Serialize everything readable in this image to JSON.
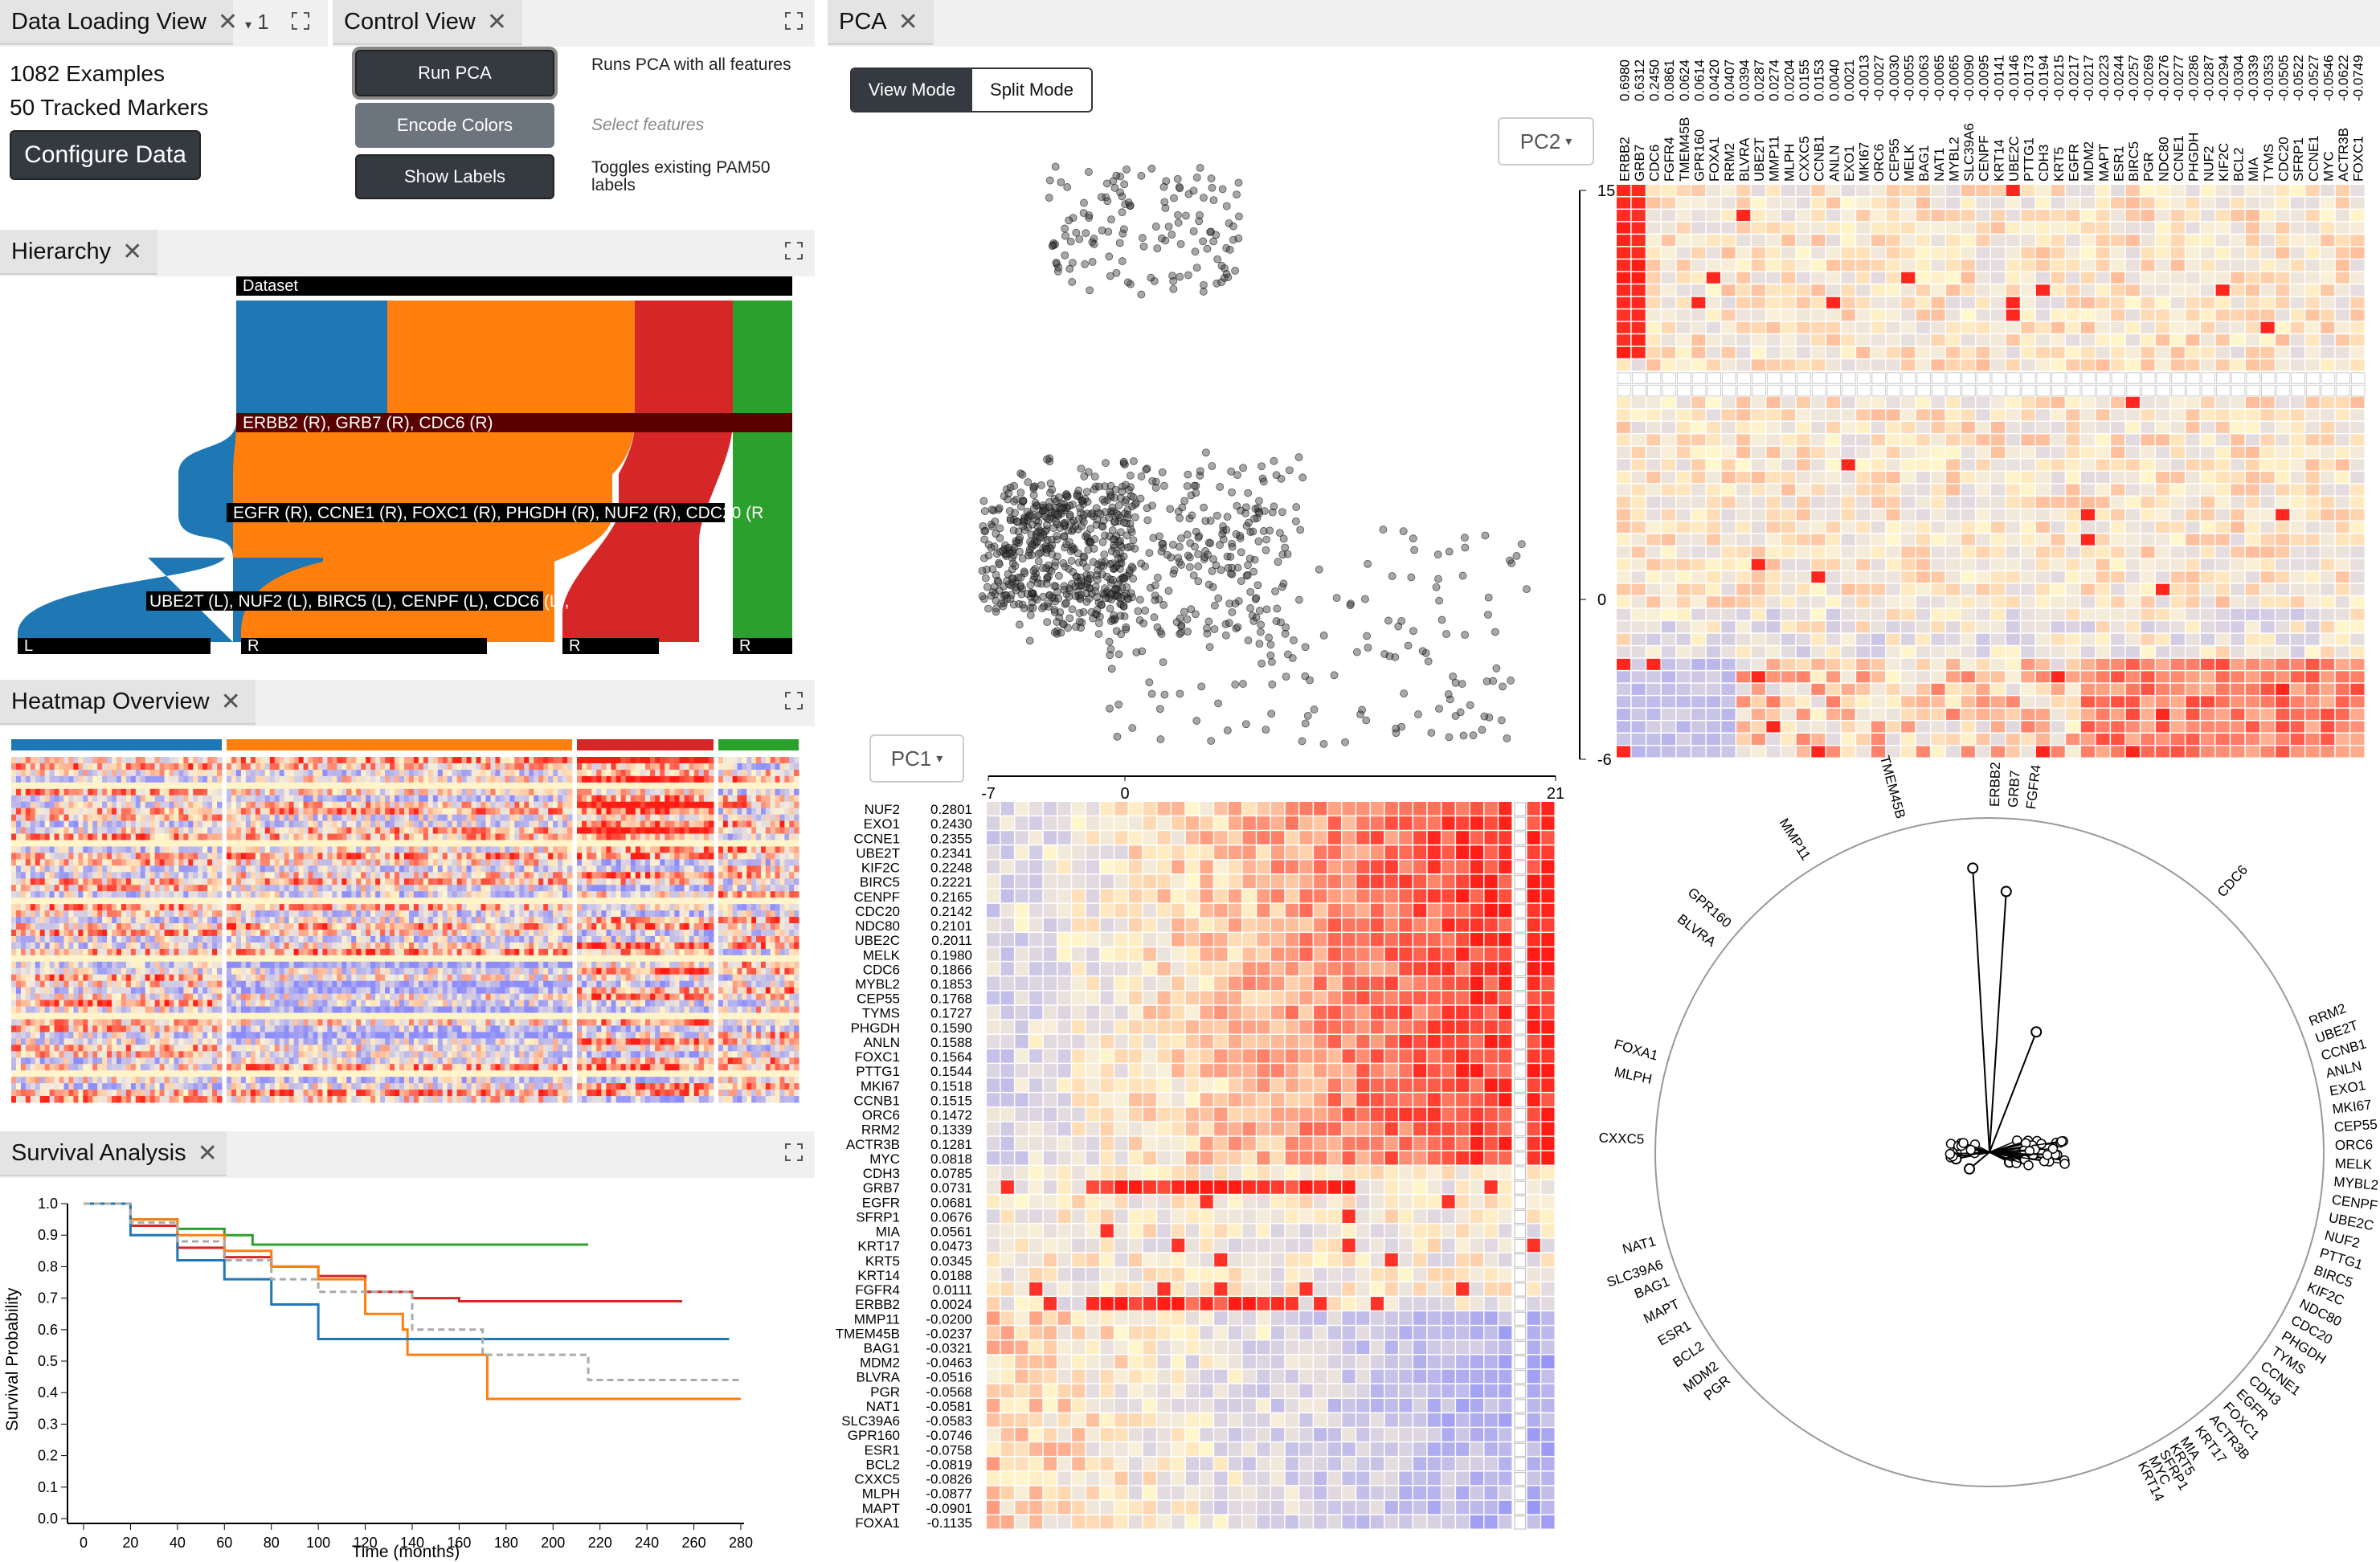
{
  "data_loading": {
    "tab_label": "Data Loading View",
    "dropdown_value": "1",
    "examples_text": "1082 Examples",
    "markers_text": "50 Tracked Markers",
    "configure_button": "Configure Data"
  },
  "control": {
    "tab_label": "Control View",
    "run_pca_button": "Run PCA",
    "run_pca_desc": "Runs PCA with all features",
    "encode_colors_button": "Encode Colors",
    "select_features_placeholder": "Select features",
    "show_labels_button": "Show Labels",
    "show_labels_desc": "Toggles existing PAM50 labels"
  },
  "hierarchy": {
    "tab_label": "Hierarchy",
    "root_label": "Dataset",
    "level1_label": "ERBB2 (R), GRB7 (R), CDC6 (R)",
    "level2_label": "EGFR (R), CCNE1 (R), FOXC1 (R), PHGDH (R), NUF2 (R), CDC20 (R",
    "level3_label": "UBE2T (L), NUF2 (L), BIRC5 (L), CENPF (L), CDC6 (L),",
    "leaf_labels": [
      "L",
      "R",
      "R",
      "R"
    ],
    "colors": {
      "blue": "#1f77b4",
      "orange": "#ff7f0e",
      "red": "#d62728",
      "green": "#2ca02c",
      "dark": "#000000",
      "darkred": "#5a0000"
    }
  },
  "heatmap_overview": {
    "tab_label": "Heatmap Overview",
    "group_colors": [
      "#1f77b4",
      "#ff7f0e",
      "#d62728",
      "#2ca02c"
    ]
  },
  "survival": {
    "tab_label": "Survival Analysis",
    "chart_data": {
      "type": "line",
      "xlabel": "Time (months)",
      "ylabel": "Survival Probability",
      "xlim": [
        0,
        280
      ],
      "ylim": [
        0,
        1.0
      ],
      "xticks": [
        "0",
        "20",
        "40",
        "60",
        "80",
        "100",
        "120",
        "140",
        "160",
        "180",
        "200",
        "220",
        "240",
        "260",
        "280"
      ],
      "yticks": [
        "0.0",
        "0.1",
        "0.2",
        "0.3",
        "0.4",
        "0.5",
        "0.6",
        "0.7",
        "0.8",
        "0.9",
        "1.0"
      ],
      "series": [
        {
          "color": "#2ca02c",
          "x": [
            0,
            20,
            40,
            60,
            70,
            72,
            140,
            215
          ],
          "y": [
            1.0,
            0.95,
            0.92,
            0.9,
            0.9,
            0.87,
            0.87,
            0.87
          ]
        },
        {
          "color": "#d62728",
          "x": [
            0,
            20,
            40,
            60,
            80,
            100,
            120,
            140,
            160,
            190,
            255
          ],
          "y": [
            1.0,
            0.93,
            0.86,
            0.83,
            0.8,
            0.77,
            0.72,
            0.7,
            0.69,
            0.69,
            0.69
          ]
        },
        {
          "color": "#ff7f0e",
          "x": [
            0,
            20,
            40,
            60,
            80,
            100,
            120,
            136,
            138,
            170,
            172,
            280
          ],
          "y": [
            1.0,
            0.95,
            0.9,
            0.85,
            0.8,
            0.76,
            0.65,
            0.6,
            0.52,
            0.52,
            0.38,
            0.38
          ]
        },
        {
          "color": "#1f77b4",
          "x": [
            0,
            20,
            40,
            60,
            80,
            100,
            120,
            140,
            160,
            180,
            275
          ],
          "y": [
            1.0,
            0.9,
            0.82,
            0.76,
            0.68,
            0.57,
            0.57,
            0.57,
            0.57,
            0.57,
            0.57
          ]
        },
        {
          "color": "#aaaaaa",
          "dash": true,
          "x": [
            0,
            20,
            40,
            60,
            80,
            100,
            140,
            168,
            170,
            215,
            280
          ],
          "y": [
            1.0,
            0.94,
            0.88,
            0.82,
            0.76,
            0.72,
            0.6,
            0.6,
            0.52,
            0.44,
            0.44
          ]
        }
      ]
    }
  },
  "pca": {
    "tab_label": "PCA",
    "view_mode_button": "View Mode",
    "split_mode_button": "Split Mode",
    "pc2_dropdown": "PC2",
    "pc1_dropdown": "PC1",
    "scatter_y_ticks": [
      "15",
      "0",
      "-6"
    ],
    "scatter_x_ticks": [
      "-7",
      "0",
      "21"
    ],
    "pc1_loadings": [
      {
        "gene": "NUF2",
        "value": "0.2801"
      },
      {
        "gene": "EXO1",
        "value": "0.2430"
      },
      {
        "gene": "CCNE1",
        "value": "0.2355"
      },
      {
        "gene": "UBE2T",
        "value": "0.2341"
      },
      {
        "gene": "KIF2C",
        "value": "0.2248"
      },
      {
        "gene": "BIRC5",
        "value": "0.2221"
      },
      {
        "gene": "CENPF",
        "value": "0.2165"
      },
      {
        "gene": "CDC20",
        "value": "0.2142"
      },
      {
        "gene": "NDC80",
        "value": "0.2101"
      },
      {
        "gene": "UBE2C",
        "value": "0.2011"
      },
      {
        "gene": "MELK",
        "value": "0.1980"
      },
      {
        "gene": "CDC6",
        "value": "0.1866"
      },
      {
        "gene": "MYBL2",
        "value": "0.1853"
      },
      {
        "gene": "CEP55",
        "value": "0.1768"
      },
      {
        "gene": "TYMS",
        "value": "0.1727"
      },
      {
        "gene": "PHGDH",
        "value": "0.1590"
      },
      {
        "gene": "ANLN",
        "value": "0.1588"
      },
      {
        "gene": "FOXC1",
        "value": "0.1564"
      },
      {
        "gene": "PTTG1",
        "value": "0.1544"
      },
      {
        "gene": "MKI67",
        "value": "0.1518"
      },
      {
        "gene": "CCNB1",
        "value": "0.1515"
      },
      {
        "gene": "ORC6",
        "value": "0.1472"
      },
      {
        "gene": "RRM2",
        "value": "0.1339"
      },
      {
        "gene": "ACTR3B",
        "value": "0.1281"
      },
      {
        "gene": "MYC",
        "value": "0.0818"
      },
      {
        "gene": "CDH3",
        "value": "0.0785"
      },
      {
        "gene": "GRB7",
        "value": "0.0731"
      },
      {
        "gene": "EGFR",
        "value": "0.0681"
      },
      {
        "gene": "SFRP1",
        "value": "0.0676"
      },
      {
        "gene": "MIA",
        "value": "0.0561"
      },
      {
        "gene": "KRT17",
        "value": "0.0473"
      },
      {
        "gene": "KRT5",
        "value": "0.0345"
      },
      {
        "gene": "KRT14",
        "value": "0.0188"
      },
      {
        "gene": "FGFR4",
        "value": "0.0111"
      },
      {
        "gene": "ERBB2",
        "value": "0.0024"
      },
      {
        "gene": "MMP11",
        "value": "-0.0200"
      },
      {
        "gene": "TMEM45B",
        "value": "-0.0237"
      },
      {
        "gene": "BAG1",
        "value": "-0.0321"
      },
      {
        "gene": "MDM2",
        "value": "-0.0463"
      },
      {
        "gene": "BLVRA",
        "value": "-0.0516"
      },
      {
        "gene": "PGR",
        "value": "-0.0568"
      },
      {
        "gene": "NAT1",
        "value": "-0.0581"
      },
      {
        "gene": "SLC39A6",
        "value": "-0.0583"
      },
      {
        "gene": "GPR160",
        "value": "-0.0746"
      },
      {
        "gene": "ESR1",
        "value": "-0.0758"
      },
      {
        "gene": "BCL2",
        "value": "-0.0819"
      },
      {
        "gene": "CXXC5",
        "value": "-0.0826"
      },
      {
        "gene": "MLPH",
        "value": "-0.0877"
      },
      {
        "gene": "MAPT",
        "value": "-0.0901"
      },
      {
        "gene": "FOXA1",
        "value": "-0.1135"
      }
    ],
    "pc2_loadings": [
      {
        "gene": "ERBB2",
        "value": "0.6980"
      },
      {
        "gene": "GRB7",
        "value": "0.6312"
      },
      {
        "gene": "CDC6",
        "value": "0.2450"
      },
      {
        "gene": "FGFR4",
        "value": "0.0861"
      },
      {
        "gene": "TMEM45B",
        "value": "0.0624"
      },
      {
        "gene": "GPR160",
        "value": "0.0614"
      },
      {
        "gene": "FOXA1",
        "value": "0.0420"
      },
      {
        "gene": "RRM2",
        "value": "0.0407"
      },
      {
        "gene": "BLVRA",
        "value": "0.0394"
      },
      {
        "gene": "UBE2T",
        "value": "0.0287"
      },
      {
        "gene": "MMP11",
        "value": "0.0274"
      },
      {
        "gene": "MLPH",
        "value": "0.0204"
      },
      {
        "gene": "CXXC5",
        "value": "0.0155"
      },
      {
        "gene": "CCNB1",
        "value": "0.0153"
      },
      {
        "gene": "ANLN",
        "value": "0.0040"
      },
      {
        "gene": "EXO1",
        "value": "0.0021"
      },
      {
        "gene": "MKI67",
        "value": "-0.0013"
      },
      {
        "gene": "ORC6",
        "value": "-0.0027"
      },
      {
        "gene": "CEP55",
        "value": "-0.0030"
      },
      {
        "gene": "MELK",
        "value": "-0.0055"
      },
      {
        "gene": "BAG1",
        "value": "-0.0063"
      },
      {
        "gene": "NAT1",
        "value": "-0.0065"
      },
      {
        "gene": "MYBL2",
        "value": "-0.0065"
      },
      {
        "gene": "SLC39A6",
        "value": "-0.0090"
      },
      {
        "gene": "CENPF",
        "value": "-0.0095"
      },
      {
        "gene": "KRT14",
        "value": "-0.0141"
      },
      {
        "gene": "UBE2C",
        "value": "-0.0146"
      },
      {
        "gene": "PTTG1",
        "value": "-0.0173"
      },
      {
        "gene": "CDH3",
        "value": "-0.0194"
      },
      {
        "gene": "KRT5",
        "value": "-0.0215"
      },
      {
        "gene": "EGFR",
        "value": "-0.0217"
      },
      {
        "gene": "MDM2",
        "value": "-0.0217"
      },
      {
        "gene": "MAPT",
        "value": "-0.0223"
      },
      {
        "gene": "ESR1",
        "value": "-0.0244"
      },
      {
        "gene": "BIRC5",
        "value": "-0.0257"
      },
      {
        "gene": "PGR",
        "value": "-0.0269"
      },
      {
        "gene": "NDC80",
        "value": "-0.0276"
      },
      {
        "gene": "CCNE1",
        "value": "-0.0277"
      },
      {
        "gene": "PHGDH",
        "value": "-0.0286"
      },
      {
        "gene": "NUF2",
        "value": "-0.0287"
      },
      {
        "gene": "KIF2C",
        "value": "-0.0294"
      },
      {
        "gene": "BCL2",
        "value": "-0.0304"
      },
      {
        "gene": "MIA",
        "value": "-0.0339"
      },
      {
        "gene": "TYMS",
        "value": "-0.0353"
      },
      {
        "gene": "CDC20",
        "value": "-0.0505"
      },
      {
        "gene": "SFRP1",
        "value": "-0.0522"
      },
      {
        "gene": "CCNE1b",
        "value": "-0.0527"
      },
      {
        "gene": "MYC",
        "value": "-0.0546"
      },
      {
        "gene": "ACTR3B",
        "value": "-0.0622"
      },
      {
        "gene": "FOXC1",
        "value": "-0.0749"
      }
    ],
    "biplot_labels": [
      {
        "text": "ERBB2",
        "a": -89
      },
      {
        "text": "GRB7",
        "a": -86
      },
      {
        "text": "FGFR4",
        "a": -83
      },
      {
        "text": "TMEM45B",
        "a": -105
      },
      {
        "text": "MMP11",
        "a": -122
      },
      {
        "text": "GPR160",
        "a": -139
      },
      {
        "text": "BLVRA",
        "a": -143
      },
      {
        "text": "CDC6",
        "a": -48
      },
      {
        "text": "FOXA1",
        "a": -164
      },
      {
        "text": "MLPH",
        "a": -168
      },
      {
        "text": "CXXC5",
        "a": -178
      },
      {
        "text": "NAT1",
        "a": 165
      },
      {
        "text": "SLC39A6",
        "a": 161
      },
      {
        "text": "BAG1",
        "a": 158
      },
      {
        "text": "MAPT",
        "a": 154
      },
      {
        "text": "ESR1",
        "a": 150
      },
      {
        "text": "BCL2",
        "a": 146
      },
      {
        "text": "MDM2",
        "a": 142
      },
      {
        "text": "PGR",
        "a": 139
      },
      {
        "text": "RRM2",
        "a": -22
      },
      {
        "text": "UBE2T",
        "a": -19
      },
      {
        "text": "CCNB1",
        "a": -16
      },
      {
        "text": "ANLN",
        "a": -13
      },
      {
        "text": "EXO1",
        "a": -10
      },
      {
        "text": "MKI67",
        "a": -7
      },
      {
        "text": "CEP55",
        "a": -4
      },
      {
        "text": "ORC6",
        "a": -1
      },
      {
        "text": "MELK",
        "a": 2
      },
      {
        "text": "MYBL2",
        "a": 5
      },
      {
        "text": "CENPF",
        "a": 8
      },
      {
        "text": "UBE2C",
        "a": 11
      },
      {
        "text": "NUF2",
        "a": 14
      },
      {
        "text": "PTTG1",
        "a": 17
      },
      {
        "text": "BIRC5",
        "a": 20
      },
      {
        "text": "KIF2C",
        "a": 23
      },
      {
        "text": "NDC80",
        "a": 26
      },
      {
        "text": "CDC20",
        "a": 29
      },
      {
        "text": "PHGDH",
        "a": 32
      },
      {
        "text": "TYMS",
        "a": 35
      },
      {
        "text": "CCNE1",
        "a": 38
      },
      {
        "text": "CDH3",
        "a": 41
      },
      {
        "text": "EGFR",
        "a": 44
      },
      {
        "text": "FOXC1",
        "a": 47
      },
      {
        "text": "ACTR3B",
        "a": 50
      },
      {
        "text": "KRT17",
        "a": 53
      },
      {
        "text": "MIA",
        "a": 56
      },
      {
        "text": "KRT5",
        "a": 58
      },
      {
        "text": "SFRP1",
        "a": 60
      },
      {
        "text": "MYC",
        "a": 62
      },
      {
        "text": "KRT14",
        "a": 64
      }
    ]
  }
}
